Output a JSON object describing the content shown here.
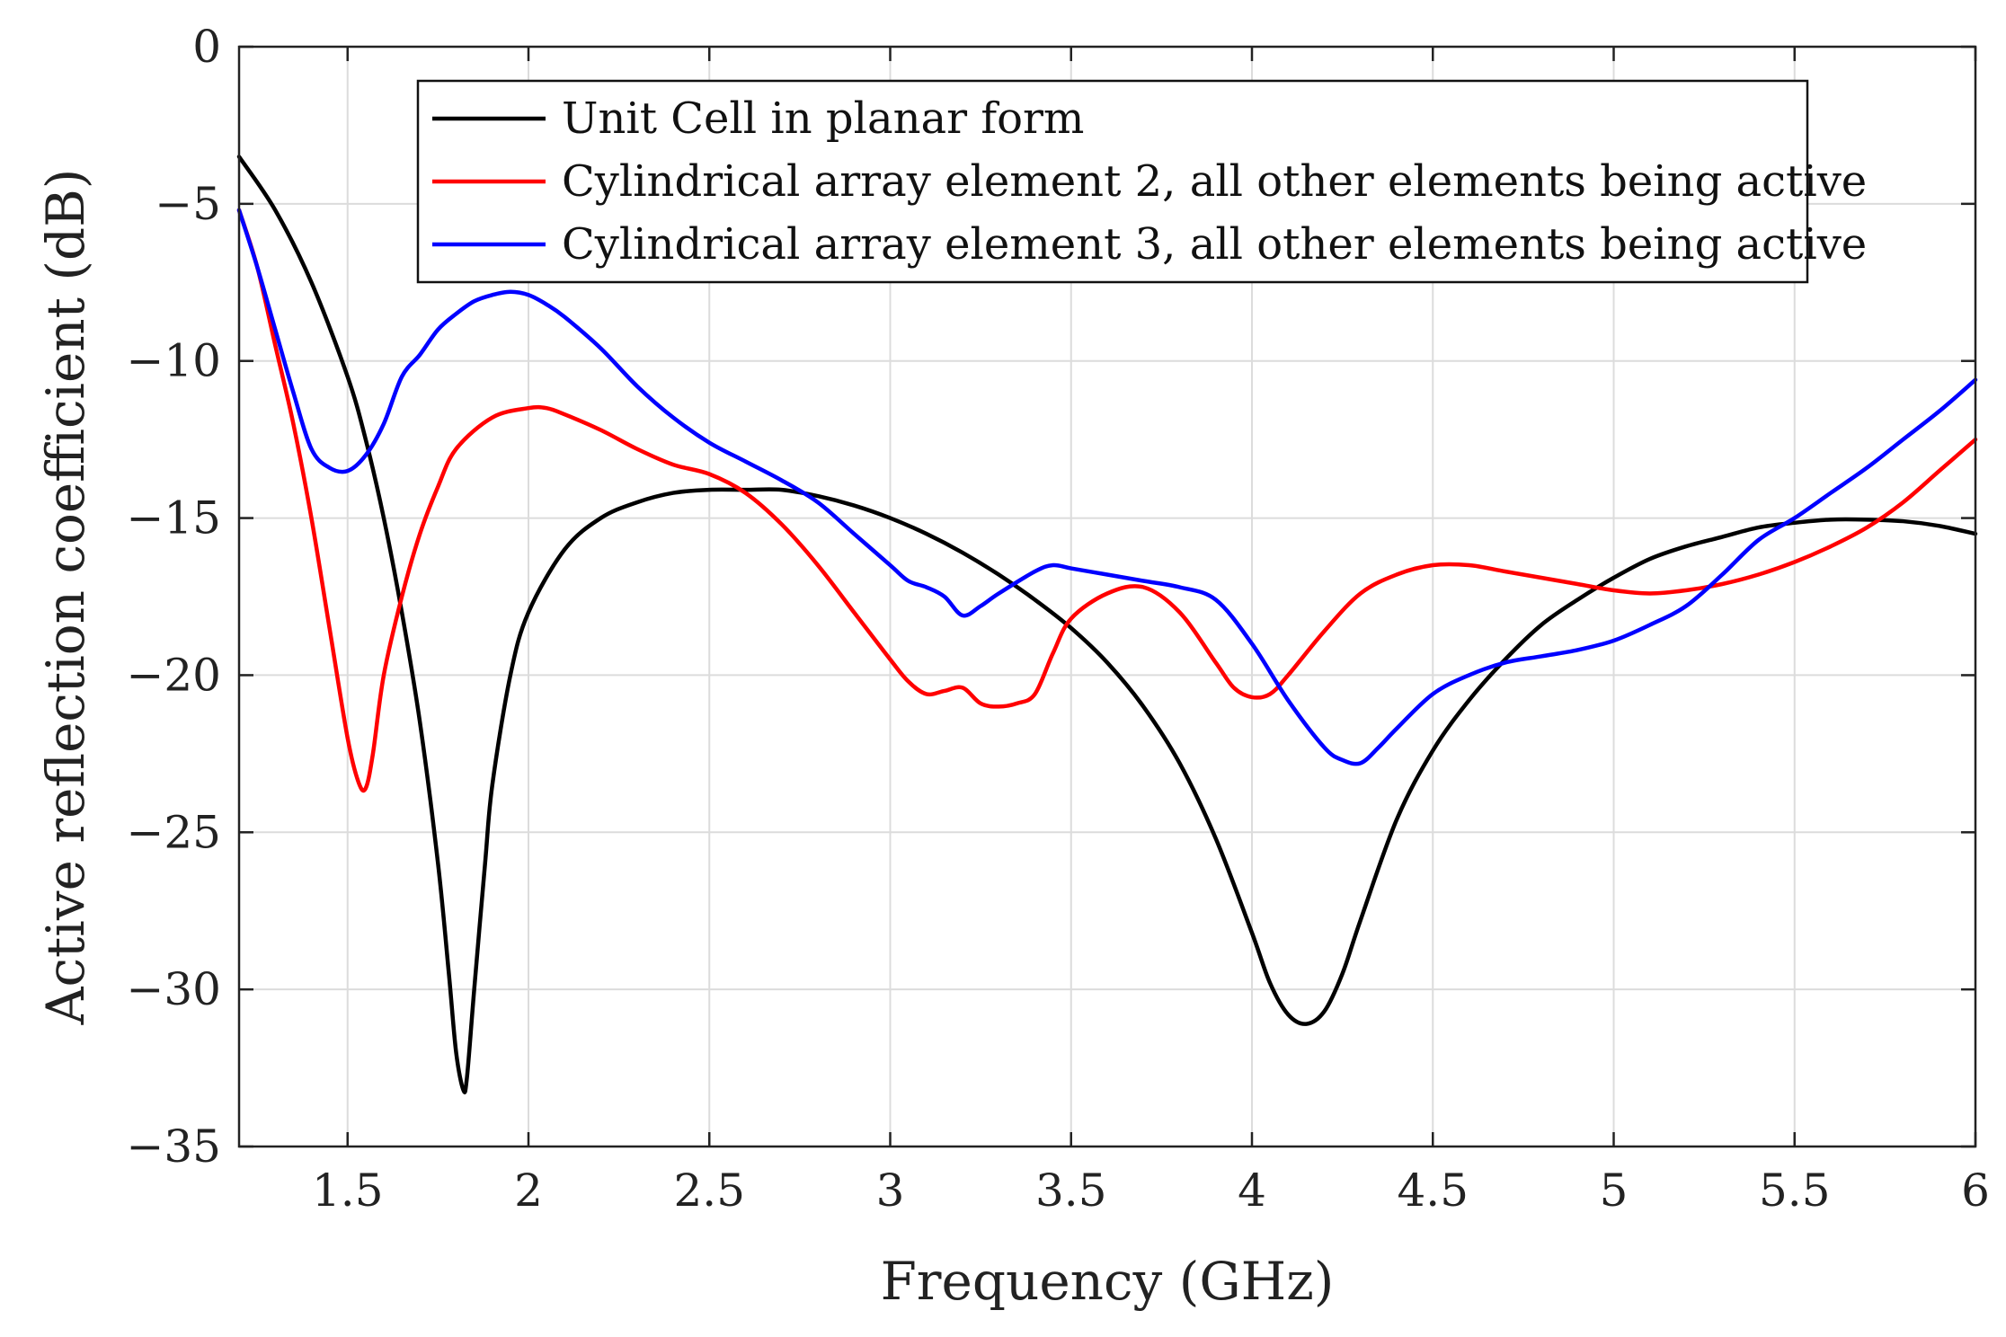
{
  "chart_data": {
    "type": "line",
    "title": "",
    "xlabel": "Frequency (GHz)",
    "ylabel": "Active reflection coefficient (dB)",
    "xlim": [
      1.2,
      6
    ],
    "ylim": [
      -35,
      0
    ],
    "xticks": [
      1.5,
      2,
      2.5,
      3,
      3.5,
      4,
      4.5,
      5,
      5.5,
      6
    ],
    "xtick_labels": [
      "1.5",
      "2",
      "2.5",
      "3",
      "3.5",
      "4",
      "4.5",
      "5",
      "5.5",
      "6"
    ],
    "yticks": [
      0,
      -5,
      -10,
      -15,
      -20,
      -25,
      -30,
      -35
    ],
    "ytick_labels": [
      "0",
      "−5",
      "−10",
      "−15",
      "−20",
      "−25",
      "−30",
      "−35"
    ],
    "grid": true,
    "legend_position": "top-center",
    "series": [
      {
        "name": "Unit Cell in planar form",
        "color": "#000000",
        "x": [
          1.2,
          1.3,
          1.4,
          1.5,
          1.55,
          1.6,
          1.65,
          1.7,
          1.75,
          1.78,
          1.8,
          1.82,
          1.83,
          1.85,
          1.88,
          1.9,
          1.95,
          2.0,
          2.1,
          2.2,
          2.3,
          2.4,
          2.5,
          2.6,
          2.7,
          2.8,
          2.9,
          3.0,
          3.1,
          3.2,
          3.3,
          3.4,
          3.5,
          3.6,
          3.7,
          3.8,
          3.9,
          4.0,
          4.05,
          4.1,
          4.15,
          4.2,
          4.25,
          4.3,
          4.4,
          4.5,
          4.6,
          4.7,
          4.8,
          4.9,
          5.0,
          5.1,
          5.2,
          5.3,
          5.4,
          5.5,
          5.6,
          5.7,
          5.8,
          5.9,
          6.0
        ],
        "y": [
          -3.5,
          -5.2,
          -7.5,
          -10.5,
          -12.5,
          -15.0,
          -18.0,
          -21.5,
          -26.0,
          -29.5,
          -32.0,
          -33.2,
          -32.8,
          -30.0,
          -26.0,
          -23.5,
          -20.0,
          -18.0,
          -16.0,
          -15.0,
          -14.5,
          -14.2,
          -14.1,
          -14.1,
          -14.1,
          -14.3,
          -14.6,
          -15.0,
          -15.5,
          -16.1,
          -16.8,
          -17.6,
          -18.5,
          -19.6,
          -21.0,
          -22.8,
          -25.2,
          -28.2,
          -29.8,
          -30.8,
          -31.1,
          -30.7,
          -29.5,
          -27.8,
          -24.6,
          -22.4,
          -20.8,
          -19.5,
          -18.4,
          -17.6,
          -16.9,
          -16.3,
          -15.9,
          -15.6,
          -15.3,
          -15.15,
          -15.05,
          -15.05,
          -15.1,
          -15.25,
          -15.5
        ]
      },
      {
        "name": "Cylindrical array element 2, all other elements being active",
        "color": "#ff0000",
        "x": [
          1.2,
          1.25,
          1.3,
          1.35,
          1.4,
          1.45,
          1.5,
          1.53,
          1.55,
          1.57,
          1.6,
          1.65,
          1.7,
          1.75,
          1.8,
          1.9,
          2.0,
          2.05,
          2.1,
          2.2,
          2.3,
          2.4,
          2.5,
          2.6,
          2.7,
          2.8,
          2.9,
          3.0,
          3.05,
          3.1,
          3.15,
          3.2,
          3.25,
          3.3,
          3.35,
          3.4,
          3.45,
          3.5,
          3.6,
          3.7,
          3.8,
          3.9,
          3.95,
          4.0,
          4.05,
          4.1,
          4.2,
          4.3,
          4.4,
          4.5,
          4.6,
          4.7,
          4.8,
          4.9,
          5.0,
          5.1,
          5.2,
          5.3,
          5.4,
          5.5,
          5.6,
          5.7,
          5.8,
          5.9,
          6.0
        ],
        "y": [
          -5.2,
          -7.0,
          -9.5,
          -12.0,
          -15.0,
          -18.5,
          -22.0,
          -23.4,
          -23.6,
          -22.5,
          -20.0,
          -17.5,
          -15.5,
          -14.0,
          -12.8,
          -11.8,
          -11.5,
          -11.5,
          -11.7,
          -12.2,
          -12.8,
          -13.3,
          -13.6,
          -14.2,
          -15.2,
          -16.5,
          -18.0,
          -19.5,
          -20.2,
          -20.6,
          -20.5,
          -20.4,
          -20.9,
          -21.0,
          -20.9,
          -20.6,
          -19.3,
          -18.2,
          -17.4,
          -17.2,
          -18.0,
          -19.6,
          -20.4,
          -20.7,
          -20.6,
          -20.0,
          -18.6,
          -17.4,
          -16.8,
          -16.5,
          -16.5,
          -16.7,
          -16.9,
          -17.1,
          -17.3,
          -17.4,
          -17.3,
          -17.1,
          -16.8,
          -16.4,
          -15.9,
          -15.3,
          -14.5,
          -13.5,
          -12.5
        ]
      },
      {
        "name": "Cylindrical array element 3, all other elements being active",
        "color": "#0000ff",
        "x": [
          1.2,
          1.25,
          1.3,
          1.35,
          1.4,
          1.45,
          1.5,
          1.55,
          1.6,
          1.65,
          1.7,
          1.75,
          1.8,
          1.85,
          1.9,
          1.95,
          2.0,
          2.05,
          2.1,
          2.2,
          2.3,
          2.4,
          2.5,
          2.6,
          2.7,
          2.8,
          2.9,
          3.0,
          3.05,
          3.1,
          3.15,
          3.2,
          3.25,
          3.3,
          3.4,
          3.45,
          3.5,
          3.6,
          3.7,
          3.8,
          3.9,
          4.0,
          4.1,
          4.2,
          4.25,
          4.3,
          4.35,
          4.4,
          4.5,
          4.6,
          4.7,
          4.8,
          4.9,
          5.0,
          5.1,
          5.2,
          5.3,
          5.4,
          5.5,
          5.6,
          5.7,
          5.8,
          5.9,
          6.0
        ],
        "y": [
          -5.2,
          -7.0,
          -9.0,
          -11.0,
          -12.8,
          -13.4,
          -13.5,
          -13.0,
          -12.0,
          -10.5,
          -9.8,
          -9.0,
          -8.5,
          -8.1,
          -7.9,
          -7.8,
          -7.9,
          -8.2,
          -8.6,
          -9.6,
          -10.8,
          -11.8,
          -12.6,
          -13.2,
          -13.8,
          -14.5,
          -15.5,
          -16.5,
          -17.0,
          -17.2,
          -17.5,
          -18.1,
          -17.8,
          -17.4,
          -16.7,
          -16.5,
          -16.6,
          -16.8,
          -17.0,
          -17.2,
          -17.6,
          -19.0,
          -20.8,
          -22.3,
          -22.7,
          -22.8,
          -22.3,
          -21.7,
          -20.6,
          -20.0,
          -19.6,
          -19.4,
          -19.2,
          -18.9,
          -18.4,
          -17.8,
          -16.8,
          -15.7,
          -15.0,
          -14.2,
          -13.4,
          -12.5,
          -11.6,
          -10.6
        ]
      }
    ]
  }
}
